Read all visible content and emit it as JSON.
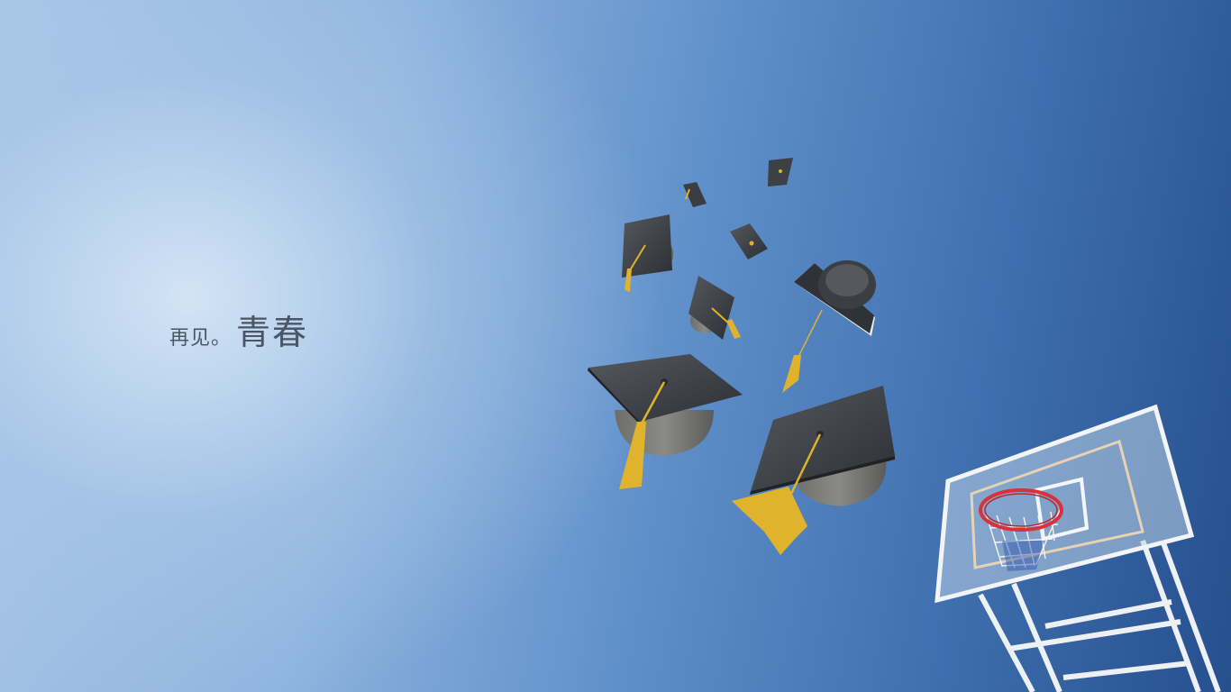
{
  "caption": {
    "small": "再见",
    "dot": "。",
    "big": "青春"
  },
  "colors": {
    "sky_light": "#d6e6f6",
    "sky_dark": "#264f8e",
    "cap_board": "#3a3d42",
    "tassel": "#e0b32c",
    "rim": "#d9303a",
    "backboard_frame": "#f2f4f6"
  }
}
